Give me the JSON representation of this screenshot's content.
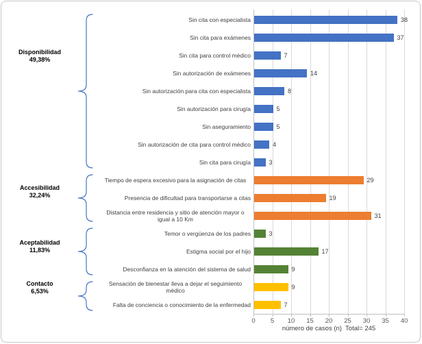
{
  "chart_data": {
    "type": "bar",
    "orientation": "horizontal",
    "xlabel": "número de casos (n)  Total= 245",
    "total_label": "Total= 245",
    "xlim": [
      0,
      40
    ],
    "xticks": [
      0,
      5,
      10,
      15,
      20,
      25,
      30,
      35,
      40
    ],
    "grid": true,
    "gridline_color": "#D9D9D9",
    "axis_line_color": "#BFBFBF",
    "brace_color": "#4472C4",
    "text_color": "#404040",
    "tick_text_color": "#595959",
    "groups": [
      {
        "name": "Disponibilidad",
        "percent": "49,38%",
        "color": "#4472C4",
        "items": [
          {
            "label": "Sin cita con especialista",
            "value": 38
          },
          {
            "label": "Sin cita para exámenes",
            "value": 37
          },
          {
            "label": "Sin cita para control médico",
            "value": 7
          },
          {
            "label": "Sin autorización de exámenes",
            "value": 14
          },
          {
            "label": "Sin autorización para cita con especialista",
            "value": 8
          },
          {
            "label": "Sin autorización para cirugía",
            "value": 5
          },
          {
            "label": "Sin aseguramiento",
            "value": 5
          },
          {
            "label": "Sin autorización de cita para control médico",
            "value": 4
          },
          {
            "label": "Sin cita para cirugía",
            "value": 3
          }
        ]
      },
      {
        "name": "Accesibilidad",
        "percent": "32,24%",
        "color": "#ED7D31",
        "items": [
          {
            "label": "Tiempo de espera excesivo para la asignación de citas",
            "value": 29
          },
          {
            "label": "Presencia de dificultad para transportarse a citas",
            "value": 19
          },
          {
            "label": "Distancia entre residencia y sitio de atención mayor o igual a 10 Km",
            "value": 31
          }
        ]
      },
      {
        "name": "Aceptabilidad",
        "percent": "11,83%",
        "color": "#548235",
        "items": [
          {
            "label": "Temor o vergüenza de los padres",
            "value": 3
          },
          {
            "label": "Estigma social por el hijo",
            "value": 17
          },
          {
            "label": "Desconfianza en la atención del sistema de salud",
            "value": 9
          }
        ]
      },
      {
        "name": "Contacto",
        "percent": "6,53%",
        "color": "#FFC000",
        "items": [
          {
            "label": "Sensación de bienestar lleva a dejar el seguimiento médico",
            "value": 9
          },
          {
            "label": "Falta de conciencia o conocimiento de la enfermedad",
            "value": 7
          }
        ]
      }
    ]
  }
}
